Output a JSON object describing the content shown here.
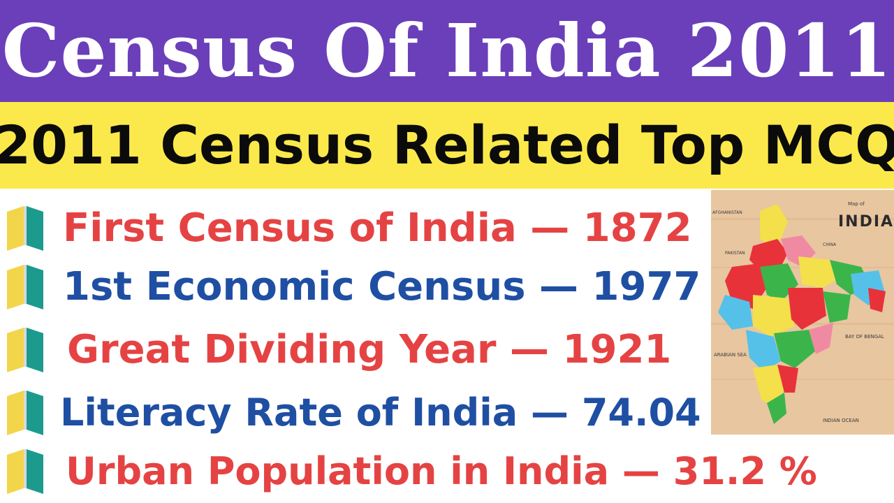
{
  "header": {
    "title": "Census Of India 2011"
  },
  "subheader": {
    "title": "2011 Census Related Top MCQ"
  },
  "facts": [
    {
      "label": "First Census of India  —  1872",
      "color": "#e54343"
    },
    {
      "label": "1st Economic Census  —  1977",
      "color": "#1f4fa3"
    },
    {
      "label": "Great Dividing Year  —  1921",
      "color": "#e54343"
    },
    {
      "label": "Literacy Rate of India  —  74.04 %",
      "color": "#1f4fa3"
    },
    {
      "label": "Urban Population in India  —  31.2 %",
      "color": "#e54343"
    }
  ],
  "bullet_icon": "open-book-icon",
  "map": {
    "heading": "Map of",
    "title": "INDIA",
    "labels": {
      "afghanistan": "AFGHANISTAN",
      "pakistan": "PAKISTAN",
      "china": "CHINA",
      "arabian_sea": "ARABIAN SEA",
      "bay_of_bengal": "BAY OF BENGAL",
      "indian_ocean": "INDIAN OCEAN"
    }
  }
}
